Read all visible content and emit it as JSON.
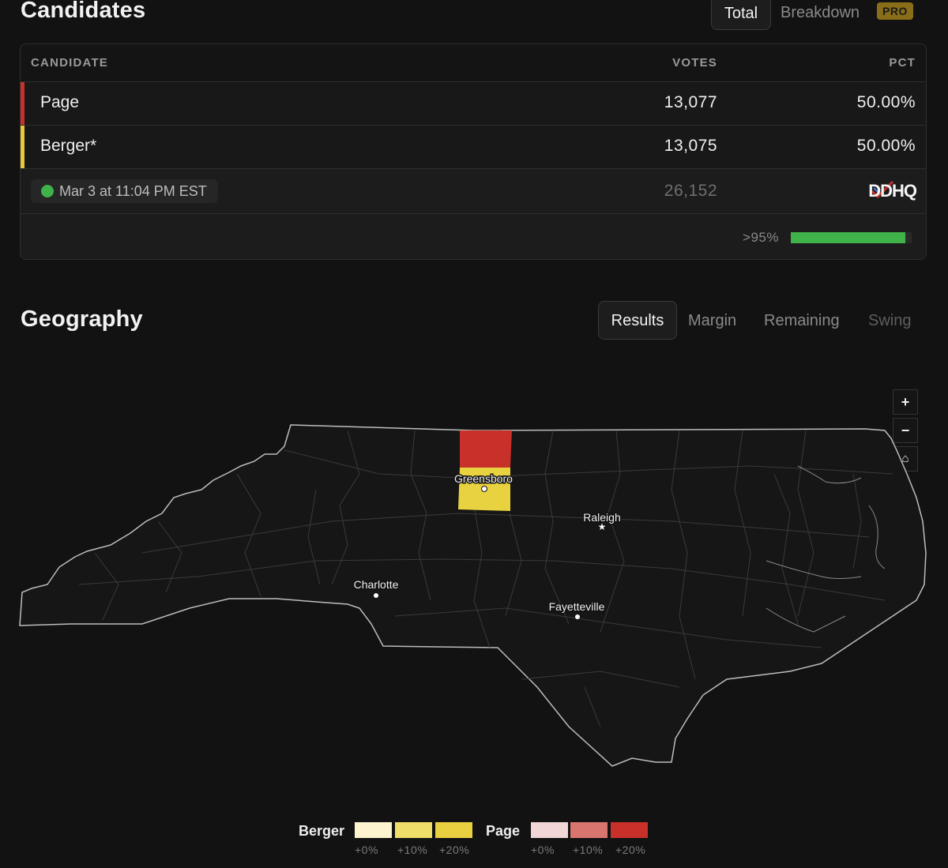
{
  "candidates_section": {
    "title": "Candidates",
    "view_tabs": [
      {
        "label": "Total",
        "active": true
      },
      {
        "label": "Breakdown",
        "active": false,
        "badge": "PRO"
      }
    ],
    "table": {
      "headers": {
        "candidate": "CANDIDATE",
        "votes": "VOTES",
        "pct": "PCT"
      },
      "rows": [
        {
          "name": "Page",
          "votes": "13,077",
          "pct": "50.00%",
          "color": "#c8302a"
        },
        {
          "name": "Berger*",
          "votes": "13,075",
          "pct": "50.00%",
          "color": "#e8c93a"
        }
      ],
      "timestamp": "Mar 3 at 11:04 PM EST",
      "status_color": "#3fb24a",
      "total_votes": "26,152",
      "source_logo": "DDHQ",
      "reporting": {
        "label": ">95%",
        "fraction": 0.95
      }
    }
  },
  "geography_section": {
    "title": "Geography",
    "tabs": [
      {
        "label": "Results",
        "active": true
      },
      {
        "label": "Margin",
        "active": false
      },
      {
        "label": "Remaining",
        "active": false
      },
      {
        "label": "Swing",
        "active": false,
        "disabled": true
      }
    ],
    "map_controls": [
      "plus-icon",
      "minus-icon",
      "home-icon"
    ],
    "cities": [
      "Greensboro",
      "Raleigh",
      "Charlotte",
      "Fayetteville"
    ],
    "highlighted_counties": [
      {
        "party": "Page",
        "color": "#c8302a"
      },
      {
        "party": "Berger",
        "color": "#e8d240"
      }
    ]
  },
  "legend": [
    {
      "name": "Berger",
      "swatches": [
        "#fdf3cf",
        "#f0de6a",
        "#e8d040"
      ],
      "ticks": [
        "+0%",
        "+10%",
        "+20%"
      ]
    },
    {
      "name": "Page",
      "swatches": [
        "#f0d6d6",
        "#d9756f",
        "#c8302a"
      ],
      "ticks": [
        "+0%",
        "+10%",
        "+20%"
      ]
    }
  ]
}
